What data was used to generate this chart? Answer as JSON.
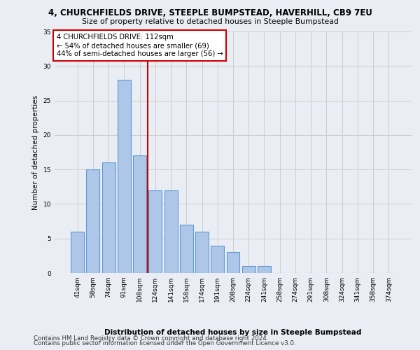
{
  "title": "4, CHURCHFIELDS DRIVE, STEEPLE BUMPSTEAD, HAVERHILL, CB9 7EU",
  "subtitle": "Size of property relative to detached houses in Steeple Bumpstead",
  "xlabel": "Distribution of detached houses by size in Steeple Bumpstead",
  "ylabel": "Number of detached properties",
  "bar_labels": [
    "41sqm",
    "58sqm",
    "74sqm",
    "91sqm",
    "108sqm",
    "124sqm",
    "141sqm",
    "158sqm",
    "174sqm",
    "191sqm",
    "208sqm",
    "224sqm",
    "241sqm",
    "258sqm",
    "274sqm",
    "291sqm",
    "308sqm",
    "324sqm",
    "341sqm",
    "358sqm",
    "374sqm"
  ],
  "bar_values": [
    6,
    15,
    16,
    28,
    17,
    12,
    12,
    7,
    6,
    4,
    3,
    1,
    1,
    0,
    0,
    0,
    0,
    0,
    0,
    0,
    0
  ],
  "bar_color": "#aec6e8",
  "bar_edge_color": "#5b9bd5",
  "vline_pos": 4.5,
  "annotation_title": "4 CHURCHFIELDS DRIVE: 112sqm",
  "annotation_line1": "← 54% of detached houses are smaller (69)",
  "annotation_line2": "44% of semi-detached houses are larger (56) →",
  "annotation_box_color": "#ffffff",
  "annotation_box_edge_color": "#cc0000",
  "vline_color": "#cc0000",
  "ylim": [
    0,
    35
  ],
  "yticks": [
    0,
    5,
    10,
    15,
    20,
    25,
    30,
    35
  ],
  "grid_color": "#cccccc",
  "bg_color": "#eaeef4",
  "footnote1": "Contains HM Land Registry data © Crown copyright and database right 2024.",
  "footnote2": "Contains public sector information licensed under the Open Government Licence v3.0."
}
